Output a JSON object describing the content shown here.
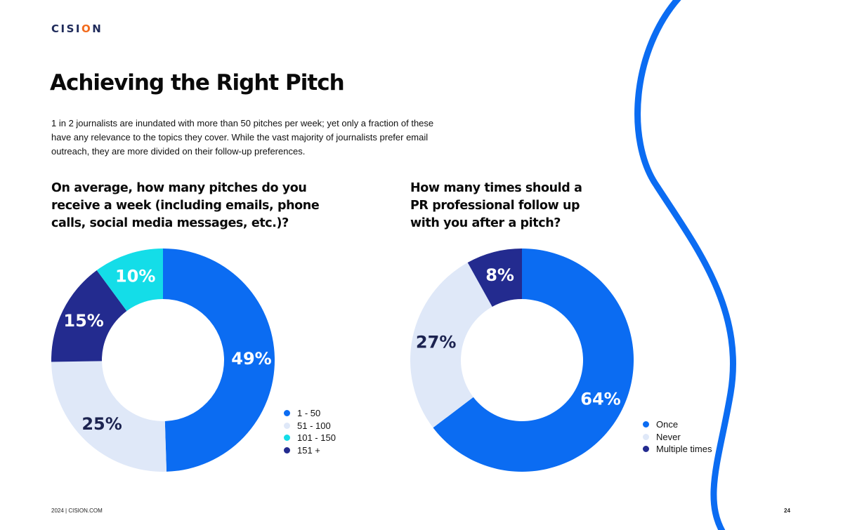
{
  "brand": {
    "logo_text_before": "CISI",
    "logo_text_o": "O",
    "logo_text_after": "N"
  },
  "page": {
    "title": "Achieving the Right Pitch",
    "intro": "1 in 2 journalists are inundated with more than 50 pitches per week; yet only a fraction of these have any relevance to the topics they cover. While the vast majority of journalists prefer email outreach, they are more divided on their follow-up preferences.",
    "footer": "2024 | CISION.COM",
    "page_number": "24"
  },
  "colors": {
    "blue": "#0b6cf2",
    "light": "#dfe8f8",
    "cyan": "#14dde8",
    "navy": "#232b8f",
    "label_white": "#ffffff",
    "label_dark": "#1c2350",
    "decor_curve": "#0b6cf2",
    "logo_accent": "#f26b1d"
  },
  "chart_data": [
    {
      "type": "pie",
      "title": "On average, how many pitches do you receive a week (including emails, phone calls, social media messages, etc.)?",
      "categories": [
        "1 - 50",
        "51 - 100",
        "101 - 150",
        "151 +"
      ],
      "values": [
        49,
        25,
        10,
        15
      ],
      "value_labels": [
        "49%",
        "25%",
        "10%",
        "15%"
      ],
      "drawing_order": [
        0,
        1,
        3,
        2
      ],
      "colors": [
        "#0b6cf2",
        "#dfe8f8",
        "#14dde8",
        "#232b8f"
      ],
      "label_colors": [
        "#ffffff",
        "#1c2350",
        "#ffffff",
        "#ffffff"
      ],
      "donut": true,
      "legend": "right"
    },
    {
      "type": "pie",
      "title": "How many times should a PR professional follow up with you after a pitch?",
      "categories": [
        "Once",
        "Never",
        "Multiple times"
      ],
      "values": [
        64,
        27,
        8
      ],
      "value_labels": [
        "64%",
        "27%",
        "8%"
      ],
      "drawing_order": [
        0,
        1,
        2
      ],
      "colors": [
        "#0b6cf2",
        "#dfe8f8",
        "#232b8f"
      ],
      "label_colors": [
        "#ffffff",
        "#1c2350",
        "#ffffff"
      ],
      "donut": true,
      "legend": "right"
    }
  ]
}
